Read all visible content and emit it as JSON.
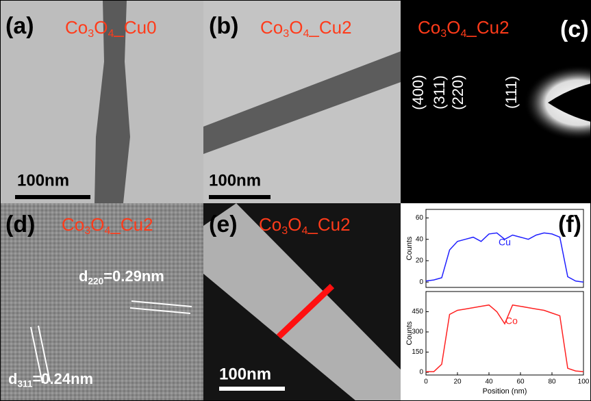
{
  "panels": [
    {
      "label": "(a)",
      "title_parts": [
        "Co",
        "3",
        "O",
        "4",
        "_Cu0"
      ],
      "scale_bar": "100nm"
    },
    {
      "label": "(b)",
      "title_parts": [
        "Co",
        "3",
        "O",
        "4",
        "_Cu2"
      ],
      "scale_bar": "100nm"
    },
    {
      "label": "(c)",
      "title_parts": [
        "Co",
        "3",
        "O",
        "4",
        "_Cu2"
      ],
      "rings": [
        "(400)",
        "(311)",
        "(220)",
        "(111)"
      ]
    },
    {
      "label": "(d)",
      "title_parts": [
        "Co",
        "3",
        "O",
        "4",
        "_Cu2"
      ],
      "annotations": [
        [
          "d",
          "220",
          "=0.29nm"
        ],
        [
          "d",
          "311",
          "=0.24nm"
        ]
      ]
    },
    {
      "label": "(e)",
      "title_parts": [
        "Co",
        "3",
        "O",
        "4",
        "_Cu2"
      ],
      "scale_bar": "100nm"
    },
    {
      "label": "(f)"
    }
  ],
  "chart_data": [
    {
      "type": "line",
      "y_label": "Counts",
      "xlim": [
        0,
        100
      ],
      "ylim": [
        -5,
        68
      ],
      "yticks": [
        0,
        20,
        40,
        60
      ],
      "x": [
        0,
        5,
        10,
        15,
        20,
        25,
        30,
        35,
        40,
        45,
        50,
        55,
        60,
        65,
        70,
        75,
        80,
        85,
        90,
        95,
        100
      ],
      "series": [
        {
          "name": "Cu",
          "color": "#1f1fff",
          "values": [
            1,
            2,
            4,
            30,
            38,
            40,
            42,
            38,
            45,
            46,
            40,
            44,
            42,
            40,
            44,
            46,
            45,
            42,
            5,
            1,
            0
          ]
        }
      ]
    },
    {
      "type": "line",
      "y_label": "Counts",
      "x_label": "Position (nm)",
      "xlim": [
        0,
        100
      ],
      "ylim": [
        -20,
        600
      ],
      "yticks": [
        0,
        150,
        300,
        450
      ],
      "xticks": [
        0,
        20,
        40,
        60,
        80,
        100
      ],
      "x": [
        0,
        5,
        10,
        15,
        20,
        25,
        30,
        35,
        40,
        45,
        50,
        55,
        60,
        65,
        70,
        75,
        80,
        85,
        90,
        95,
        100
      ],
      "series": [
        {
          "name": "Co",
          "color": "#ff2020",
          "values": [
            5,
            5,
            60,
            430,
            460,
            470,
            480,
            490,
            500,
            450,
            360,
            500,
            490,
            480,
            470,
            460,
            440,
            420,
            30,
            10,
            5
          ]
        }
      ]
    }
  ]
}
